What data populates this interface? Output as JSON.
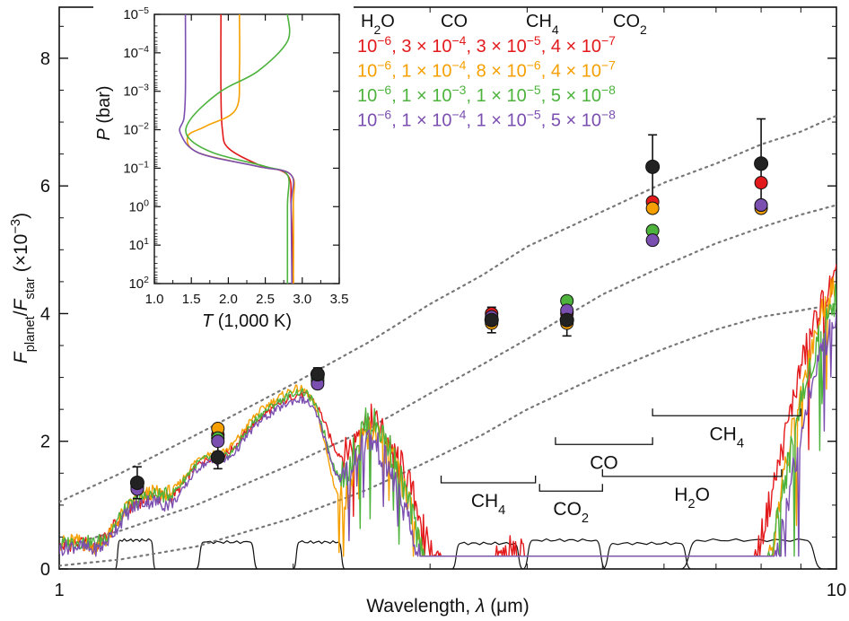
{
  "chart_data": {
    "type": "line",
    "title": "",
    "xlabel": "Wavelength, λ (μm)",
    "ylabel": "Fplanet/Fstar (×10−3)",
    "xscale": "log",
    "xlim": [
      1,
      10
    ],
    "ylim": [
      0,
      8.8
    ],
    "xticks": [
      "1",
      "10"
    ],
    "yticks": [
      "0",
      "2",
      "4",
      "6",
      "8"
    ],
    "grid": false,
    "colors": {
      "red": "#e31a1c",
      "orange": "#f5a000",
      "green": "#4db33d",
      "purple": "#7b4fb0",
      "black": "#222222",
      "grey": "#777777"
    },
    "legend": {
      "placement": "top-right",
      "header": [
        "H2O",
        "CO",
        "CH4",
        "CO2"
      ],
      "rows": [
        {
          "color": "red",
          "text": "10−6, 3 × 10−4, 3 × 10−5, 4 × 10−7"
        },
        {
          "color": "orange",
          "text": "10−6, 1 × 10−4, 8 × 10−6, 4 × 10−7"
        },
        {
          "color": "green",
          "text": "10−6, 1 × 10−3, 1 × 10−5, 5 × 10−8"
        },
        {
          "color": "purple",
          "text": "10−6, 1 × 10−4, 1 × 10−5, 5 × 10−8"
        }
      ]
    },
    "baseline": [
      [
        1,
        0.35
      ],
      [
        1.1,
        0.6
      ],
      [
        1.2,
        0.9
      ],
      [
        1.3,
        1.2
      ],
      [
        1.45,
        1.6
      ],
      [
        1.6,
        1.95
      ],
      [
        1.8,
        2.4
      ],
      [
        2.0,
        2.8
      ],
      [
        2.2,
        3.1
      ],
      [
        2.4,
        3.35
      ],
      [
        2.6,
        3.6
      ],
      [
        2.8,
        3.85
      ],
      [
        3.0,
        4.1
      ],
      [
        3.3,
        4.4
      ],
      [
        3.6,
        4.75
      ],
      [
        4.0,
        5.1
      ],
      [
        4.5,
        5.4
      ],
      [
        5.0,
        5.75
      ],
      [
        5.5,
        6.05
      ],
      [
        6.0,
        6.3
      ],
      [
        6.5,
        6.45
      ],
      [
        7.0,
        6.65
      ],
      [
        7.5,
        6.8
      ],
      [
        8.0,
        6.95
      ],
      [
        8.5,
        7.1
      ],
      [
        9.0,
        7.3
      ],
      [
        9.5,
        7.2
      ],
      [
        10,
        6.8
      ]
    ],
    "dips": [
      {
        "center": 1.13,
        "width": 0.02,
        "depth": 0.3
      },
      {
        "center": 1.4,
        "width": 0.02,
        "depth": 0.3
      },
      {
        "center": 1.65,
        "width": 0.02,
        "depth": 0.25
      },
      {
        "center": 2.3,
        "width": 0.02,
        "depth": 1.4
      },
      {
        "center": 2.6,
        "width": 0.04,
        "depth": 0.6
      },
      {
        "center": 3.05,
        "width": 0.04,
        "depth": 1.5
      },
      {
        "center": 3.3,
        "width": 0.05,
        "depth": 2.3
      },
      {
        "center": 3.55,
        "width": 0.04,
        "depth": 1.2
      },
      {
        "center": 4.2,
        "width": 0.08,
        "depth": 2.4
      },
      {
        "center": 4.55,
        "width": 0.05,
        "depth": 1.6
      },
      {
        "center": 4.85,
        "width": 0.05,
        "depth": 2.6
      },
      {
        "center": 5.3,
        "width": 0.06,
        "depth": 1.4
      },
      {
        "center": 5.6,
        "width": 0.05,
        "depth": 1.8
      },
      {
        "center": 6.2,
        "width": 0.08,
        "depth": 1.8
      },
      {
        "center": 6.7,
        "width": 0.06,
        "depth": 1.5
      },
      {
        "center": 7.3,
        "width": 0.06,
        "depth": 1.8
      },
      {
        "center": 7.7,
        "width": 0.12,
        "depth": 3.5
      },
      {
        "center": 8.2,
        "width": 0.08,
        "depth": 1.6
      }
    ],
    "series": [
      {
        "color": "red",
        "offset": 0,
        "dipScale": 0.85
      },
      {
        "color": "orange",
        "offset": 0.12,
        "dipScale": 1.1
      },
      {
        "color": "green",
        "offset": 0.05,
        "dipScale": 1.0
      },
      {
        "color": "purple",
        "offset": -0.05,
        "dipScale": 1.05
      }
    ],
    "blackbody_curves": [
      [
        [
          1,
          1.05
        ],
        [
          1.2,
          1.5
        ],
        [
          1.5,
          2.1
        ],
        [
          2.0,
          2.9
        ],
        [
          2.5,
          3.55
        ],
        [
          3.0,
          4.15
        ],
        [
          3.5,
          4.6
        ],
        [
          4.0,
          5.05
        ],
        [
          5.0,
          5.6
        ],
        [
          6.0,
          6.05
        ],
        [
          7.0,
          6.35
        ],
        [
          8.0,
          6.65
        ],
        [
          9.0,
          6.85
        ],
        [
          10,
          7.1
        ]
      ],
      [
        [
          1,
          0.35
        ],
        [
          1.2,
          0.6
        ],
        [
          1.5,
          1.0
        ],
        [
          2.0,
          1.65
        ],
        [
          2.5,
          2.2
        ],
        [
          3.0,
          2.75
        ],
        [
          3.5,
          3.2
        ],
        [
          4.0,
          3.6
        ],
        [
          5.0,
          4.3
        ],
        [
          6.0,
          4.75
        ],
        [
          7.0,
          5.1
        ],
        [
          8.0,
          5.35
        ],
        [
          9.0,
          5.55
        ],
        [
          10,
          5.7
        ]
      ],
      [
        [
          1,
          0.05
        ],
        [
          1.2,
          0.15
        ],
        [
          1.5,
          0.35
        ],
        [
          2.0,
          0.8
        ],
        [
          2.5,
          1.25
        ],
        [
          3.0,
          1.7
        ],
        [
          3.5,
          2.1
        ],
        [
          4.0,
          2.5
        ],
        [
          5.0,
          3.05
        ],
        [
          6.0,
          3.45
        ],
        [
          7.0,
          3.75
        ],
        [
          8.0,
          3.95
        ],
        [
          9.0,
          4.05
        ],
        [
          10,
          4.15
        ]
      ]
    ],
    "observations": [
      {
        "x": 1.26,
        "black": 1.35,
        "err": 0.25,
        "model": [
          1.28,
          1.33,
          1.3,
          1.25
        ]
      },
      {
        "x": 1.6,
        "black": 1.75,
        "err": 0.18,
        "model": [
          2.1,
          2.2,
          2.05,
          2.0
        ]
      },
      {
        "x": 2.15,
        "black": 3.05,
        "err": 0.1,
        "model": [
          3.0,
          3.05,
          2.95,
          2.9
        ]
      },
      {
        "x": 3.6,
        "black": 3.9,
        "err": 0.2,
        "model": [
          4.0,
          3.85,
          3.9,
          3.95
        ]
      },
      {
        "x": 4.5,
        "black": 3.9,
        "err": 0.25,
        "model": [
          4.0,
          3.85,
          4.2,
          4.05
        ]
      },
      {
        "x": 5.8,
        "black": 6.3,
        "err": 0.5,
        "model": [
          5.75,
          5.65,
          5.3,
          5.15
        ]
      },
      {
        "x": 8.0,
        "black": 6.35,
        "err": 0.7,
        "model": [
          6.05,
          5.65,
          5.7,
          5.7
        ]
      }
    ],
    "filters": [
      {
        "x0": 1.18,
        "x1": 1.33,
        "h": 0.45
      },
      {
        "x0": 1.5,
        "x1": 1.8,
        "h": 0.42
      },
      {
        "x0": 2.0,
        "x1": 2.33,
        "h": 0.42
      },
      {
        "x0": 3.2,
        "x1": 3.95,
        "h": 0.4
      },
      {
        "x0": 3.95,
        "x1": 5.05,
        "h": 0.45
      },
      {
        "x0": 5.0,
        "x1": 6.5,
        "h": 0.4
      },
      {
        "x0": 6.3,
        "x1": 9.6,
        "h": 0.45
      }
    ],
    "band_annotations": [
      {
        "label": "CH4",
        "x0": 3.1,
        "x1": 4.1,
        "y": 1.35,
        "labelPos": "below"
      },
      {
        "label": "CO2",
        "x0": 4.15,
        "x1": 5.0,
        "y": 1.22,
        "labelPos": "below"
      },
      {
        "label": "CO",
        "x0": 4.35,
        "x1": 5.8,
        "y": 1.95,
        "labelPos": "below"
      },
      {
        "label": "H2O",
        "x0": 5.0,
        "x1": 8.5,
        "y": 1.45,
        "labelPos": "below"
      },
      {
        "label": "CH4",
        "x0": 5.8,
        "x1": 9.0,
        "y": 2.4,
        "labelPos": "below"
      }
    ],
    "inset": {
      "xlabel": "T (1,000 K)",
      "ylabel": "P (bar)",
      "xlim": [
        1.0,
        3.5
      ],
      "yscale": "log",
      "ylim": [
        1e-05,
        100
      ],
      "xticks": [
        "1.0",
        "1.5",
        "2.0",
        "2.5",
        "3.0",
        "3.5"
      ],
      "yticks": [
        "10−5",
        "10−4",
        "10−3",
        "10−2",
        "10−1",
        "100",
        "101",
        "102"
      ],
      "profiles": [
        {
          "color": "red",
          "points": [
            [
              1.9,
              1e-05
            ],
            [
              1.9,
              0.001
            ],
            [
              1.92,
              0.01
            ],
            [
              2.0,
              0.03
            ],
            [
              2.4,
              0.08
            ],
            [
              2.8,
              0.15
            ],
            [
              2.85,
              1
            ],
            [
              2.88,
              100
            ]
          ]
        },
        {
          "color": "orange",
          "points": [
            [
              2.15,
              1e-05
            ],
            [
              2.15,
              0.0003
            ],
            [
              2.1,
              0.003
            ],
            [
              1.7,
              0.008
            ],
            [
              1.45,
              0.015
            ],
            [
              1.6,
              0.04
            ],
            [
              2.4,
              0.09
            ],
            [
              2.85,
              0.15
            ],
            [
              2.88,
              1
            ],
            [
              2.88,
              100
            ]
          ]
        },
        {
          "color": "green",
          "points": [
            [
              2.8,
              1e-05
            ],
            [
              2.8,
              5e-05
            ],
            [
              2.4,
              0.0003
            ],
            [
              1.9,
              0.001
            ],
            [
              1.5,
              0.005
            ],
            [
              1.45,
              0.015
            ],
            [
              1.8,
              0.04
            ],
            [
              2.5,
              0.09
            ],
            [
              2.8,
              0.15
            ],
            [
              2.8,
              1
            ],
            [
              2.8,
              100
            ]
          ]
        },
        {
          "color": "purple",
          "points": [
            [
              1.42,
              1e-05
            ],
            [
              1.42,
              0.001
            ],
            [
              1.4,
              0.005
            ],
            [
              1.35,
              0.012
            ],
            [
              1.6,
              0.04
            ],
            [
              2.4,
              0.09
            ],
            [
              2.85,
              0.15
            ],
            [
              2.85,
              1
            ],
            [
              2.86,
              100
            ]
          ]
        }
      ]
    }
  }
}
